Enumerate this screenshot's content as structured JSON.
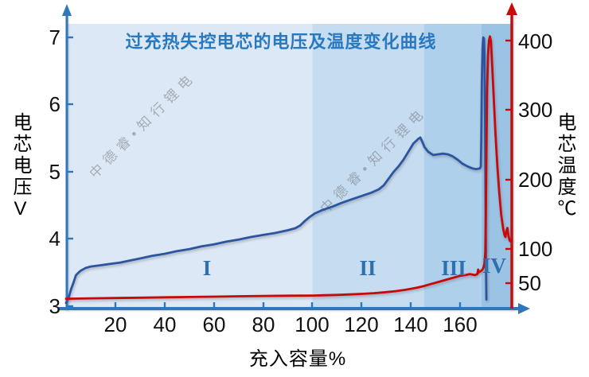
{
  "title": "过充热失控电芯的电压及温度变化曲线",
  "watermark": "中德睿•知行锂电",
  "colors": {
    "title": "#2979c1",
    "axis_blue": "#2e77bb",
    "axis_red": "#c80a0a",
    "voltage_curve": "#2b55a0",
    "temperature_curve": "#c90909",
    "zone_label": "#2e6fae"
  },
  "chart_data": {
    "type": "line",
    "title": "过充热失控电芯的电压及温度变化曲线",
    "x_axis": {
      "label": "充入容量%",
      "range": [
        0,
        181
      ],
      "ticks": [
        20,
        40,
        60,
        80,
        100,
        120,
        140,
        160
      ],
      "tick_labels": [
        "20",
        "40",
        "60",
        "80",
        "100",
        "120",
        "140",
        "160"
      ]
    },
    "y_left": {
      "label": "电芯电压V",
      "range": [
        3,
        7.2
      ],
      "ticks": [
        7,
        6,
        5,
        4,
        3
      ],
      "tick_labels": [
        "7",
        "6",
        "5",
        "4",
        "3"
      ]
    },
    "y_right": {
      "label": "电芯温度℃",
      "range": [
        0,
        430
      ],
      "ticks": [
        400,
        300,
        200,
        100,
        50
      ],
      "tick_labels": [
        "400",
        "300",
        "200",
        "100",
        "50"
      ]
    },
    "zones": [
      {
        "label": "I",
        "start": 0,
        "end": 100,
        "color": "#dce8f5"
      },
      {
        "label": "II",
        "start": 100,
        "end": 145.3,
        "color": "#c6dcf1"
      },
      {
        "label": "III",
        "start": 145.3,
        "end": 168.6,
        "color": "#aed0ea"
      },
      {
        "label": "IV",
        "start": 168.6,
        "end": 181,
        "color": "#9bc3e4"
      }
    ],
    "series": [
      {
        "name": "voltage",
        "axis": "left",
        "color": "#2b55a0",
        "points": [
          [
            0,
            3.05
          ],
          [
            1,
            3.12
          ],
          [
            2,
            3.25
          ],
          [
            3,
            3.35
          ],
          [
            4,
            3.46
          ],
          [
            5,
            3.5
          ],
          [
            6,
            3.53
          ],
          [
            8,
            3.57
          ],
          [
            10,
            3.59
          ],
          [
            14,
            3.61
          ],
          [
            18,
            3.63
          ],
          [
            22,
            3.65
          ],
          [
            26,
            3.68
          ],
          [
            30,
            3.71
          ],
          [
            35,
            3.75
          ],
          [
            40,
            3.78
          ],
          [
            45,
            3.82
          ],
          [
            50,
            3.85
          ],
          [
            55,
            3.89
          ],
          [
            60,
            3.92
          ],
          [
            65,
            3.96
          ],
          [
            70,
            3.99
          ],
          [
            75,
            4.03
          ],
          [
            80,
            4.06
          ],
          [
            85,
            4.09
          ],
          [
            90,
            4.13
          ],
          [
            93,
            4.16
          ],
          [
            95,
            4.2
          ],
          [
            97,
            4.27
          ],
          [
            99,
            4.33
          ],
          [
            101,
            4.38
          ],
          [
            104,
            4.43
          ],
          [
            108,
            4.48
          ],
          [
            112,
            4.54
          ],
          [
            116,
            4.59
          ],
          [
            120,
            4.64
          ],
          [
            124,
            4.69
          ],
          [
            127,
            4.74
          ],
          [
            129,
            4.8
          ],
          [
            131,
            4.9
          ],
          [
            133,
            5.0
          ],
          [
            135,
            5.08
          ],
          [
            137,
            5.18
          ],
          [
            139,
            5.3
          ],
          [
            141,
            5.42
          ],
          [
            143,
            5.49
          ],
          [
            143.8,
            5.51
          ],
          [
            144.6,
            5.45
          ],
          [
            145.5,
            5.37
          ],
          [
            147,
            5.3
          ],
          [
            149,
            5.25
          ],
          [
            151,
            5.26
          ],
          [
            153,
            5.27
          ],
          [
            155,
            5.26
          ],
          [
            157,
            5.23
          ],
          [
            159,
            5.18
          ],
          [
            161,
            5.12
          ],
          [
            163,
            5.08
          ],
          [
            165,
            5.05
          ],
          [
            166.5,
            5.04
          ],
          [
            168,
            5.05
          ],
          [
            168.4,
            5.08
          ],
          [
            168.6,
            5.5
          ],
          [
            168.8,
            6.3
          ],
          [
            169.1,
            6.85
          ],
          [
            169.4,
            7.0
          ],
          [
            169.7,
            6.98
          ],
          [
            169.9,
            6.7
          ],
          [
            170.1,
            5.8
          ],
          [
            170.3,
            4.6
          ],
          [
            170.5,
            3.6
          ],
          [
            170.65,
            3.1
          ]
        ]
      },
      {
        "name": "temperature",
        "axis": "right",
        "color": "#c90909",
        "points": [
          [
            0,
            28
          ],
          [
            10,
            28.5
          ],
          [
            20,
            29
          ],
          [
            30,
            29.5
          ],
          [
            40,
            30
          ],
          [
            50,
            30.5
          ],
          [
            60,
            31
          ],
          [
            70,
            31.5
          ],
          [
            80,
            32
          ],
          [
            90,
            32.3
          ],
          [
            100,
            32.6
          ],
          [
            105,
            33
          ],
          [
            110,
            33.5
          ],
          [
            115,
            34.2
          ],
          [
            120,
            35
          ],
          [
            125,
            36
          ],
          [
            130,
            37.5
          ],
          [
            134,
            39
          ],
          [
            138,
            41
          ],
          [
            142,
            43.5
          ],
          [
            145,
            46
          ],
          [
            148,
            49
          ],
          [
            151,
            52
          ],
          [
            154,
            55
          ],
          [
            157,
            58
          ],
          [
            160,
            61
          ],
          [
            162,
            62
          ],
          [
            164,
            63.5
          ],
          [
            166,
            62
          ],
          [
            166.6,
            63
          ],
          [
            167,
            63.5
          ],
          [
            167.3,
            70
          ],
          [
            167.6,
            66
          ],
          [
            168,
            67
          ],
          [
            168.5,
            68
          ],
          [
            169,
            70
          ],
          [
            169.5,
            73
          ],
          [
            169.9,
            79
          ],
          [
            170.2,
            95
          ],
          [
            170.45,
            150
          ],
          [
            170.7,
            250
          ],
          [
            170.95,
            330
          ],
          [
            171.3,
            378
          ],
          [
            171.7,
            400
          ],
          [
            172.1,
            406
          ],
          [
            172.5,
            399
          ],
          [
            173,
            365
          ],
          [
            173.6,
            320
          ],
          [
            174.3,
            268
          ],
          [
            175.1,
            220
          ],
          [
            175.9,
            180
          ],
          [
            176.7,
            148
          ],
          [
            177.5,
            128
          ],
          [
            178,
            120
          ],
          [
            178.4,
            117
          ],
          [
            178.8,
            126
          ],
          [
            179.2,
            130
          ],
          [
            179.6,
            119
          ],
          [
            180.1,
            112
          ],
          [
            180.7,
            110
          ],
          [
            181,
            112
          ]
        ]
      }
    ]
  }
}
